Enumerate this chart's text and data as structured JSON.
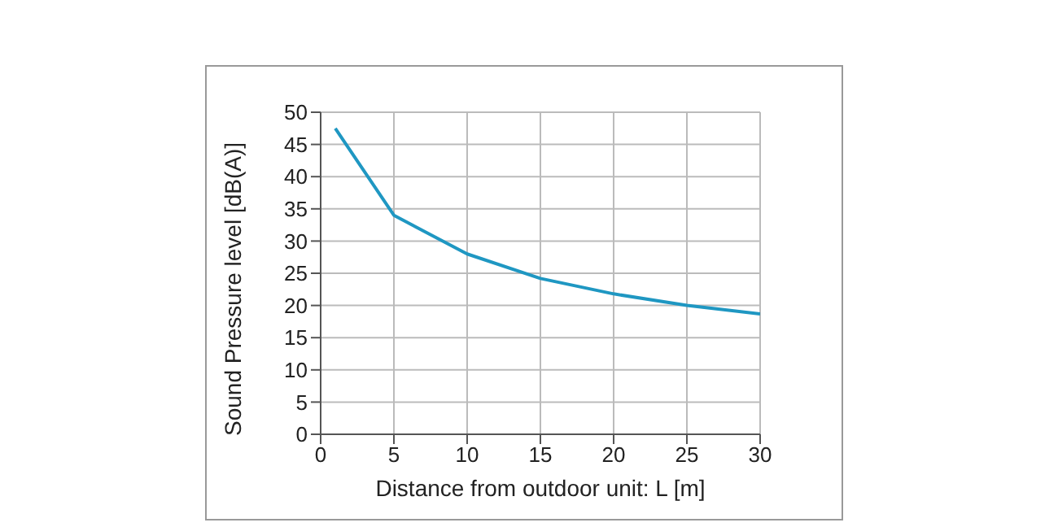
{
  "chart_data": {
    "type": "line",
    "xlabel": "Distance from outdoor unit: L [m]",
    "ylabel": "Sound Pressure level [dB(A)]",
    "x": [
      1,
      5,
      10,
      15,
      20,
      25,
      30
    ],
    "series": [
      {
        "color": "#1f97c2",
        "values": [
          47.5,
          34,
          28,
          24.2,
          21.8,
          20,
          18.7
        ]
      }
    ],
    "xlim": [
      0,
      30
    ],
    "xticks": [
      0,
      5,
      10,
      15,
      20,
      25,
      30
    ],
    "ylim": [
      0,
      50
    ],
    "yticks": [
      0,
      5,
      10,
      15,
      20,
      25,
      30,
      35,
      40,
      45,
      50
    ],
    "grid": true,
    "marker": "none",
    "line_style": "solid"
  }
}
